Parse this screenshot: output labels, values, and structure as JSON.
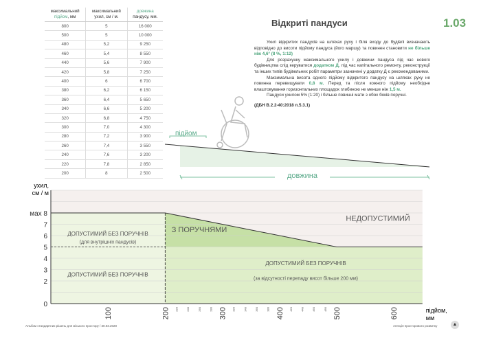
{
  "header": {
    "title": "Відкриті пандуси",
    "page_number": "1.03"
  },
  "table": {
    "headers": [
      [
        "максимальний",
        "підйом",
        ", мм"
      ],
      [
        "максимальний",
        "ухил, см / м.",
        ""
      ],
      [
        "довжина",
        "пандусу, мм.",
        ""
      ]
    ],
    "rows": [
      [
        "800",
        "5",
        "16 000"
      ],
      [
        "500",
        "5",
        "10 000"
      ],
      [
        "480",
        "5,2",
        "9 250"
      ],
      [
        "460",
        "5,4",
        "8 550"
      ],
      [
        "440",
        "5,6",
        "7 900"
      ],
      [
        "420",
        "5,8",
        "7 250"
      ],
      [
        "400",
        "6",
        "6 700"
      ],
      [
        "380",
        "6,2",
        "6 150"
      ],
      [
        "360",
        "6,4",
        "5 650"
      ],
      [
        "340",
        "6,6",
        "5 200"
      ],
      [
        "320",
        "6,8",
        "4 750"
      ],
      [
        "300",
        "7,0",
        "4 300"
      ],
      [
        "280",
        "7,2",
        "3 900"
      ],
      [
        "260",
        "7,4",
        "3 550"
      ],
      [
        "240",
        "7,6",
        "3 200"
      ],
      [
        "220",
        "7,8",
        "2 850"
      ],
      [
        "200",
        "8",
        "2 500"
      ]
    ]
  },
  "text": {
    "p1a": "Ухил відкритих пандусів на шляхах руху і біля входу до будівлі визначають відповідно до висоти підйому пандуса (його маршу) та повинен становити ",
    "p1b": "не більше ніж 4,6° (8 %, 1:12)",
    "p2a": "Для розрахунку максимального ухилу і довжини пандуса під час нового будівництва слід керуватися ",
    "p2b": "додатком Д",
    "p2c": ", під час капітального ремонту, реконструкції та інших типів будівельних робіт параметри зазначені у додатку Д є рекомендованими.",
    "p3a": "Максимальна висота одного підйому відкритого пандусу на шляхах руху не повинна перевищувати ",
    "p3b": "0,8 м.",
    "p3c": " Перед та після кожного підйому необхідне влаштовування горизонтальних площадок глибиною не менше ніж ",
    "p3d": "1,5 м.",
    "p4": "Пандуси ухилом 5% (1:20) і більше повинні мати з обох боків поручні.",
    "ref": "(ДБН В.2.2-40:2018 п.5.3.1)"
  },
  "ramp_diagram": {
    "rise_label": "підйом",
    "length_label": "довжина"
  },
  "chart_data": {
    "type": "area",
    "ylabel": "ухил, см / м",
    "xlabel": "підйом, мм",
    "xlim": [
      0,
      650
    ],
    "ylim": [
      0,
      10
    ],
    "x_ticks_major": [
      100,
      200,
      300,
      400,
      500,
      600
    ],
    "x_ticks_minor": [
      220,
      240,
      260,
      280,
      320,
      340,
      360,
      380,
      420,
      440,
      460,
      480
    ],
    "y_ticks": [
      {
        "v": 0,
        "label": "0"
      },
      {
        "v": 2,
        "label": "2"
      },
      {
        "v": 3,
        "label": "3"
      },
      {
        "v": 4,
        "label": "4"
      },
      {
        "v": 5,
        "label": "5"
      },
      {
        "v": 6,
        "label": "6"
      },
      {
        "v": 7,
        "label": "7"
      },
      {
        "v": 8,
        "label": "мах  8"
      }
    ],
    "limit_line": [
      [
        0,
        8
      ],
      [
        200,
        8
      ],
      [
        500,
        5
      ],
      [
        650,
        5
      ]
    ],
    "grid": true,
    "regions": {
      "forbidden": "НЕДОПУСТИМИЙ",
      "with_rails": "З ПОРУЧНЯМИ",
      "ok_indoor": "ДОПУСТИМИЙ БЕЗ ПОРУЧНІВ",
      "ok_indoor_note": "(для внутрішніх пандусів)",
      "ok_low": "ДОПУСТИМИЙ БЕЗ ПОРУЧНІВ",
      "ok_right": "ДОПУСТИМИЙ БЕЗ ПОРУЧНІВ",
      "ok_right_note": "(за відсутності перепаду висот більше 200 мм)"
    },
    "colors": {
      "forbidden": "#f5f0ee",
      "light_green": "#eef5e2",
      "green": "#dfeec9",
      "rail_green": "#c6e0a6",
      "line": "#333333"
    }
  },
  "footer": {
    "left": "Альбом стандартних рішень для міського простору / 30.03.2020",
    "right": "Агенція просторового розвитку"
  }
}
